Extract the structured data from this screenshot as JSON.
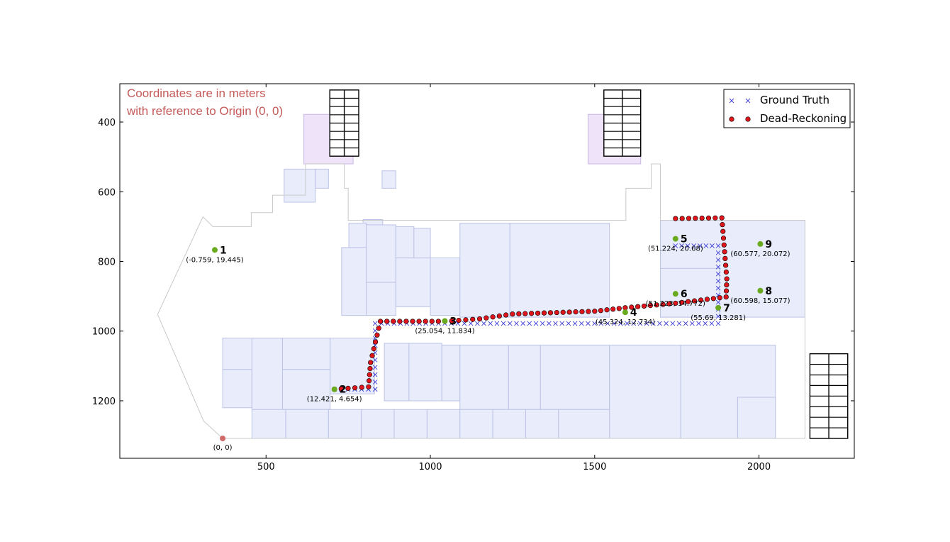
{
  "chart_data": {
    "type": "scatter",
    "title": "",
    "xlabel": "",
    "ylabel": "",
    "xlim": [
      55,
      2290
    ],
    "ylim": [
      1365,
      290
    ],
    "y_inverted": true,
    "x_ticks": [
      500,
      1000,
      1500,
      2000
    ],
    "y_ticks": [
      400,
      600,
      800,
      1000,
      1200
    ],
    "grid": false,
    "legend_position": "top-right",
    "annotation_lines": [
      "Coordinates are in meters",
      "with reference to Origin (0, 0)"
    ],
    "colors": {
      "ground_truth": "#3b3bd6",
      "dead_reckoning": "#e0151b",
      "waypoint": "#6aaa1e",
      "origin": "#d06a6a",
      "annotation": "#c45a5a",
      "room_fill": "#e8ecfb",
      "room_stroke": "#bcc3e4",
      "stair_fill": "#eee3f8",
      "stair_stroke": "#c7b6e6"
    },
    "origin": {
      "x": 368,
      "y": 1308,
      "label": "(0, 0)"
    },
    "waypoints": [
      {
        "id": "1",
        "x": 344,
        "y": 767,
        "coord": "(-0.759, 19.445)"
      },
      {
        "id": "2",
        "x": 708,
        "y": 1167,
        "coord": "(12.421, 4.654)"
      },
      {
        "id": "3",
        "x": 1044,
        "y": 971,
        "coord": "(25.054, 11.834)"
      },
      {
        "id": "4",
        "x": 1593,
        "y": 946,
        "coord": "(45.324, 12.734)"
      },
      {
        "id": "5",
        "x": 1746,
        "y": 735,
        "coord": "(51.224, 20.68)"
      },
      {
        "id": "6",
        "x": 1746,
        "y": 893,
        "coord": "(51.223, 14.772)"
      },
      {
        "id": "7",
        "x": 1876,
        "y": 933,
        "coord": "(55.69, 13.281)"
      },
      {
        "id": "8",
        "x": 2004,
        "y": 884,
        "coord": "(60.598, 15.077)"
      },
      {
        "id": "9",
        "x": 2004,
        "y": 750,
        "coord": "(60.577, 20.072)"
      }
    ],
    "series": [
      {
        "name": "Ground Truth",
        "marker": "x",
        "path": [
          [
            708,
            1167
          ],
          [
            832,
            1167
          ],
          [
            832,
            978
          ],
          [
            1044,
            978
          ],
          [
            1876,
            978
          ],
          [
            1876,
            755
          ],
          [
            1746,
            755
          ]
        ]
      },
      {
        "name": "Dead-Reckoning",
        "marker": "o",
        "path": [
          [
            708,
            1167
          ],
          [
            812,
            1160
          ],
          [
            818,
            1090
          ],
          [
            848,
            972
          ],
          [
            1044,
            972
          ],
          [
            1150,
            965
          ],
          [
            1250,
            951
          ],
          [
            1500,
            943
          ],
          [
            1593,
            933
          ],
          [
            1746,
            920
          ],
          [
            1900,
            902
          ],
          [
            1902,
            850
          ],
          [
            1887,
            675
          ],
          [
            1746,
            677
          ]
        ]
      }
    ],
    "floorplan": {
      "outline": [
        [
          368,
          1308
        ],
        [
          310,
          1258
        ],
        [
          170,
          952
        ],
        [
          308,
          672
        ],
        [
          338,
          700
        ],
        [
          455,
          700
        ],
        [
          455,
          660
        ],
        [
          520,
          660
        ],
        [
          520,
          610
        ],
        [
          620,
          610
        ],
        [
          620,
          520
        ],
        [
          738,
          520
        ],
        [
          738,
          590
        ],
        [
          750,
          590
        ],
        [
          750,
          682
        ],
        [
          1595,
          682
        ],
        [
          1595,
          590
        ],
        [
          1672,
          590
        ],
        [
          1672,
          520
        ],
        [
          1700,
          520
        ],
        [
          1700,
          682
        ],
        [
          2140,
          682
        ],
        [
          2140,
          1308
        ],
        [
          1098,
          1308
        ],
        [
          368,
          1308
        ]
      ],
      "rooms": [
        [
          555,
          535,
          650,
          630
        ],
        [
          650,
          535,
          690,
          590
        ],
        [
          795,
          680,
          855,
          855
        ],
        [
          853,
          540,
          895,
          590
        ],
        [
          752,
          690,
          805,
          770
        ],
        [
          805,
          695,
          895,
          860
        ],
        [
          895,
          700,
          950,
          790
        ],
        [
          950,
          705,
          1000,
          810
        ],
        [
          730,
          760,
          805,
          955
        ],
        [
          805,
          860,
          895,
          955
        ],
        [
          895,
          790,
          1000,
          930
        ],
        [
          1000,
          790,
          1090,
          955
        ],
        [
          1090,
          690,
          1242,
          960
        ],
        [
          1242,
          690,
          1545,
          960
        ],
        [
          1700,
          682,
          2140,
          960
        ],
        [
          1700,
          820,
          1880,
          960
        ],
        [
          368,
          1020,
          550,
          1110
        ],
        [
          368,
          1110,
          457,
          1220
        ],
        [
          457,
          1020,
          550,
          1230
        ],
        [
          550,
          1020,
          695,
          1110
        ],
        [
          550,
          1110,
          695,
          1225
        ],
        [
          695,
          1020,
          830,
          1180
        ],
        [
          860,
          1035,
          935,
          1200
        ],
        [
          935,
          1035,
          1035,
          1200
        ],
        [
          1035,
          1040,
          1090,
          1200
        ],
        [
          1090,
          1040,
          1238,
          1225
        ],
        [
          1238,
          1040,
          1335,
          1225
        ],
        [
          1335,
          1040,
          1545,
          1225
        ],
        [
          1545,
          1040,
          1762,
          1308
        ],
        [
          1762,
          1040,
          2050,
          1308
        ],
        [
          457,
          1225,
          560,
          1308
        ],
        [
          560,
          1225,
          690,
          1308
        ],
        [
          690,
          1225,
          790,
          1308
        ],
        [
          790,
          1225,
          890,
          1308
        ],
        [
          890,
          1225,
          990,
          1308
        ],
        [
          990,
          1225,
          1090,
          1308
        ],
        [
          1090,
          1225,
          1190,
          1308
        ],
        [
          1190,
          1225,
          1290,
          1308
        ],
        [
          1290,
          1225,
          1390,
          1308
        ],
        [
          1390,
          1225,
          1545,
          1308
        ],
        [
          1935,
          1190,
          2050,
          1308
        ]
      ],
      "stairs_fill": [
        [
          615,
          378,
          765,
          520
        ],
        [
          1480,
          378,
          1640,
          520
        ]
      ],
      "stair_grids": [
        {
          "x0": 694,
          "y0": 308,
          "x1": 782,
          "y1": 498,
          "rows": 8,
          "cols": 2
        },
        {
          "x0": 1528,
          "y0": 308,
          "x1": 1640,
          "y1": 498,
          "rows": 8,
          "cols": 2
        },
        {
          "x0": 2155,
          "y0": 1065,
          "x1": 2270,
          "y1": 1308,
          "rows": 8,
          "cols": 2
        }
      ]
    }
  }
}
